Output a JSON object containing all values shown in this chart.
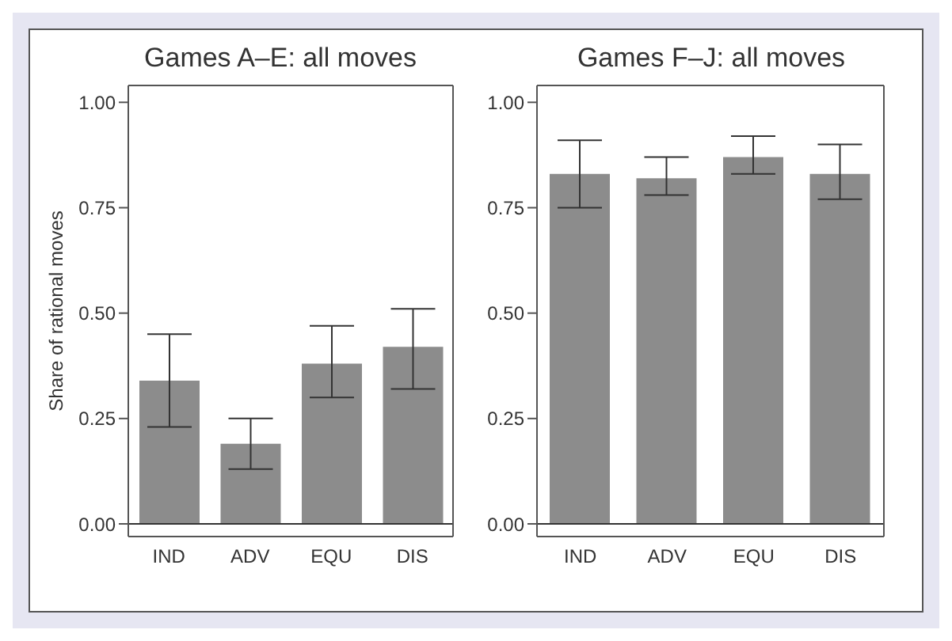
{
  "chart_data": [
    {
      "type": "bar",
      "title": "Games A–E: all moves",
      "ylabel": "Share of rational moves",
      "categories": [
        "IND",
        "ADV",
        "EQU",
        "DIS"
      ],
      "values": [
        0.34,
        0.19,
        0.38,
        0.42
      ],
      "color": "#8c8c8c",
      "errors": [
        [
          0.23,
          0.45
        ],
        [
          0.13,
          0.25
        ],
        [
          0.3,
          0.47
        ],
        [
          0.32,
          0.51
        ]
      ],
      "ylim": [
        -0.03,
        1.04
      ],
      "yticks": [
        {
          "value": 0,
          "label": "0.00"
        },
        {
          "value": 0.25,
          "label": "0.25"
        },
        {
          "value": 0.5,
          "label": "0.50"
        },
        {
          "value": 0.75,
          "label": "0.75"
        },
        {
          "value": 1,
          "label": "1.00"
        }
      ],
      "ref_lines": [
        {
          "axis": "y",
          "value": 0,
          "color": "#333333"
        }
      ]
    },
    {
      "type": "bar",
      "title": "Games F–J: all moves",
      "categories": [
        "IND",
        "ADV",
        "EQU",
        "DIS"
      ],
      "values": [
        0.83,
        0.82,
        0.87,
        0.83
      ],
      "color": "#8c8c8c",
      "errors": [
        [
          0.75,
          0.91
        ],
        [
          0.78,
          0.87
        ],
        [
          0.83,
          0.92
        ],
        [
          0.77,
          0.9
        ]
      ],
      "ylim": [
        -0.03,
        1.04
      ],
      "yticks": [
        {
          "value": 0,
          "label": "0.00"
        },
        {
          "value": 0.25,
          "label": "0.25"
        },
        {
          "value": 0.5,
          "label": "0.50"
        },
        {
          "value": 0.75,
          "label": "0.75"
        },
        {
          "value": 1,
          "label": "1.00"
        }
      ],
      "ref_lines": [
        {
          "axis": "y",
          "value": 0,
          "color": "#333333"
        }
      ]
    }
  ]
}
